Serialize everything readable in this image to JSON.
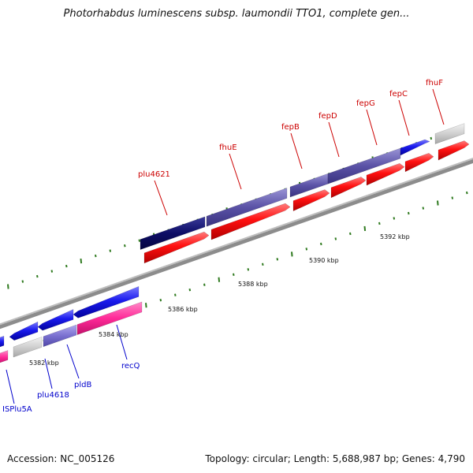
{
  "title": "Photorhabdus luminescens subsp. laumondii TTO1, complete gen...",
  "footer": {
    "accession": "Accession: NC_005126",
    "topology": "Topology: circular; Length: 5,688,987 bp; Genes: 4,790"
  },
  "colors": {
    "strand_forward_label": "#cc0000",
    "strand_reverse_label": "#0000cc",
    "tick": "#2f7a1f",
    "backbone": "#8a8a8a",
    "pseudo_gray": "#c8c8c8"
  },
  "scale_labels": [
    "5382 kbp",
    "5384 kbp",
    "5386 kbp",
    "5388 kbp",
    "5390 kbp",
    "5392 kbp"
  ],
  "gene_labels_top": [
    "plu4621",
    "fhuE",
    "fepB",
    "fepD",
    "fepG",
    "fepC",
    "fhuF"
  ],
  "gene_labels_bottom": [
    "ISPlu5A",
    "plu4618",
    "pldB",
    "recQ"
  ]
}
